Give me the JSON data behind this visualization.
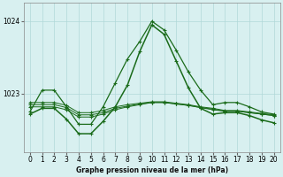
{
  "bg_color": "#d8f0f0",
  "grid_color": "#b0d8d8",
  "line_color": "#1a6b1a",
  "title": "Graphe pression niveau de la mer (hPa)",
  "xlim": [
    -0.5,
    20.5
  ],
  "ylim": [
    1022.2,
    1024.25
  ],
  "yticks": [
    1023,
    1024
  ],
  "xticks": [
    0,
    1,
    2,
    3,
    4,
    5,
    6,
    7,
    8,
    9,
    10,
    11,
    12,
    13,
    14,
    15,
    16,
    17,
    18,
    19,
    20
  ],
  "series": [
    [
      1022.75,
      1023.05,
      1023.05,
      1022.82,
      1022.58,
      1022.58,
      1022.82,
      1023.15,
      1023.48,
      1023.72,
      1024.0,
      1023.88,
      1023.6,
      1023.3,
      1023.05,
      1022.85,
      1022.88,
      1022.88,
      1022.82,
      1022.75,
      1022.72
    ],
    [
      1022.82,
      1022.82,
      1022.82,
      1022.78,
      1022.68,
      1022.68,
      1022.72,
      1022.78,
      1022.82,
      1022.85,
      1022.88,
      1022.88,
      1022.86,
      1022.84,
      1022.81,
      1022.78,
      1022.76,
      1022.76,
      1022.74,
      1022.72,
      1022.7
    ],
    [
      1022.88,
      1022.88,
      1022.88,
      1022.84,
      1022.74,
      1022.74,
      1022.77,
      1022.82,
      1022.85,
      1022.87,
      1022.89,
      1022.89,
      1022.87,
      1022.85,
      1022.82,
      1022.8,
      1022.77,
      1022.77,
      1022.75,
      1022.73,
      1022.71
    ],
    [
      1022.85,
      1022.85,
      1022.85,
      1022.81,
      1022.71,
      1022.71,
      1022.74,
      1022.8,
      1022.83,
      1022.86,
      1022.88,
      1022.88,
      1022.86,
      1022.84,
      1022.81,
      1022.79,
      1022.76,
      1022.76,
      1022.74,
      1022.72,
      1022.7
    ],
    [
      1022.72,
      1022.8,
      1022.8,
      1022.65,
      1022.45,
      1022.45,
      1022.62,
      1022.82,
      1023.12,
      1023.58,
      1023.95,
      1023.82,
      1023.45,
      1023.08,
      1022.8,
      1022.72,
      1022.74,
      1022.74,
      1022.7,
      1022.64,
      1022.6
    ]
  ],
  "linewidths": [
    0.9,
    0.7,
    0.7,
    0.7,
    1.1
  ],
  "marker": "+",
  "markersize": 3.5,
  "markeredgewidth": 0.8
}
